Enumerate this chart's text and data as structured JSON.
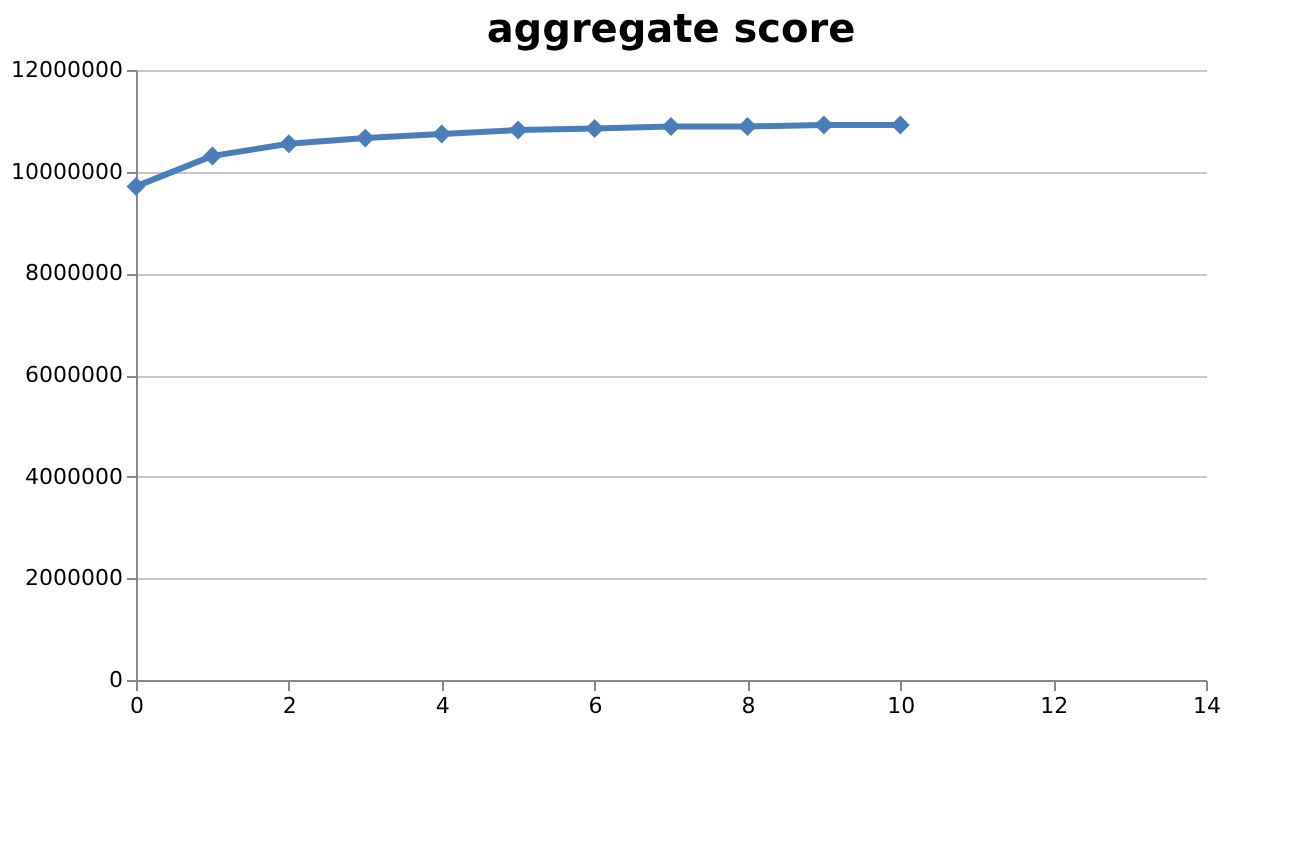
{
  "chart_data": {
    "type": "line",
    "title": "aggregate score",
    "x": [
      0,
      1,
      2,
      3,
      4,
      5,
      6,
      7,
      8,
      9,
      10
    ],
    "series": [
      {
        "color": "#4a7ebb",
        "values": [
          9710000,
          10310000,
          10550000,
          10660000,
          10740000,
          10820000,
          10850000,
          10890000,
          10890000,
          10920000,
          10920000
        ]
      }
    ],
    "xlim": [
      0,
      14
    ],
    "xticks": [
      0,
      2,
      4,
      6,
      8,
      10,
      12,
      14
    ],
    "ylim": [
      0,
      12000000
    ],
    "yticks": [
      0,
      2000000,
      4000000,
      6000000,
      8000000,
      10000000,
      12000000
    ],
    "grid": "y",
    "marker": "diamond",
    "line_style": "solid"
  }
}
